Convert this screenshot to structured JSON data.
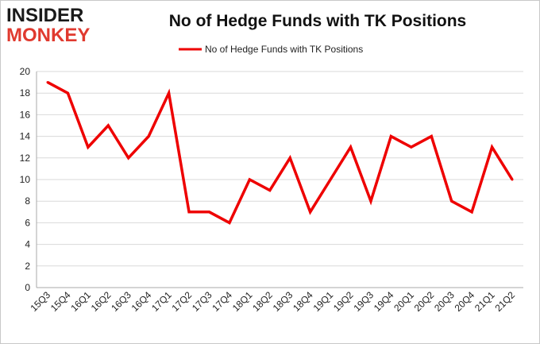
{
  "logo": {
    "top_text": "INSIDER",
    "bottom_text": "MONKEY"
  },
  "colors": {
    "series": "#ee0000",
    "grid": "#d9d9d9",
    "axis": "#aaaaaa",
    "logo_accent": "#e03a2f"
  },
  "chart_data": {
    "type": "line",
    "title": "No of Hedge Funds with TK Positions",
    "xlabel": "",
    "ylabel": "",
    "ylim": [
      0,
      20
    ],
    "yticks": [
      0,
      2,
      4,
      6,
      8,
      10,
      12,
      14,
      16,
      18,
      20
    ],
    "grid": true,
    "legend_position": "top-center",
    "categories": [
      "15Q3",
      "15Q4",
      "16Q1",
      "16Q2",
      "16Q3",
      "16Q4",
      "17Q1",
      "17Q2",
      "17Q3",
      "17Q4",
      "18Q1",
      "18Q2",
      "18Q3",
      "18Q4",
      "19Q1",
      "19Q2",
      "19Q3",
      "19Q4",
      "20Q1",
      "20Q2",
      "20Q3",
      "20Q4",
      "21Q1",
      "21Q2"
    ],
    "series": [
      {
        "name": "No of Hedge Funds with TK Positions",
        "values": [
          19,
          18,
          13,
          15,
          12,
          14,
          18,
          7,
          7,
          6,
          10,
          9,
          12,
          7,
          10,
          13,
          8,
          14,
          13,
          14,
          8,
          7,
          13,
          10
        ]
      }
    ]
  }
}
